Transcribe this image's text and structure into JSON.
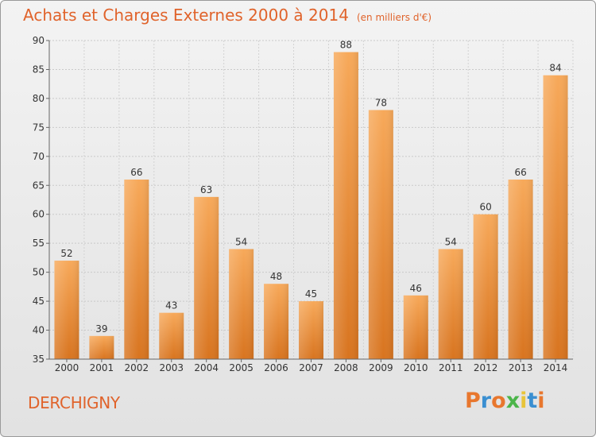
{
  "header": {
    "title": "Achats et Charges Externes 2000 à 2014",
    "subtitle": "(en milliers d'€)"
  },
  "footer": {
    "town": "DERCHIGNY",
    "logo": "Proxiti",
    "logo_colors": [
      "#e8772e",
      "#3a8fd1",
      "#e8772e",
      "#4bb54a",
      "#e8c43a",
      "#3a8fd1",
      "#e8772e"
    ]
  },
  "colors": {
    "bar_light": "#f7a95a",
    "bar_dark": "#d8741f",
    "title": "#e0632b"
  },
  "chart_data": {
    "type": "bar",
    "categories": [
      "2000",
      "2001",
      "2002",
      "2003",
      "2004",
      "2005",
      "2006",
      "2007",
      "2008",
      "2009",
      "2010",
      "2011",
      "2012",
      "2013",
      "2014"
    ],
    "values": [
      52,
      39,
      66,
      43,
      63,
      54,
      48,
      45,
      88,
      78,
      46,
      54,
      60,
      66,
      84
    ],
    "ylim": [
      35,
      90
    ],
    "yticks": [
      35,
      40,
      45,
      50,
      55,
      60,
      65,
      70,
      75,
      80,
      85,
      90
    ],
    "grid": true
  }
}
